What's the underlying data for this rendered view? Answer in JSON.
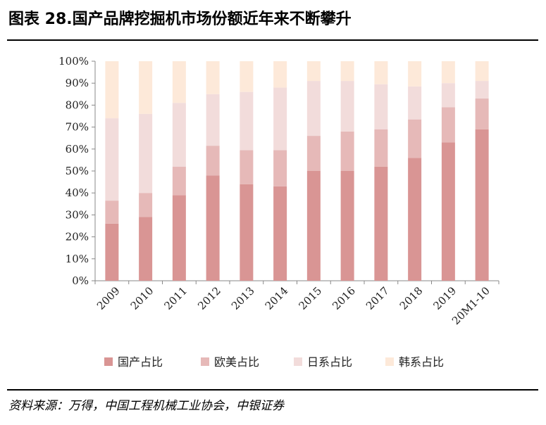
{
  "title": "图表 28.国产品牌挖掘机市场份额近年来不断攀升",
  "source": "资料来源：万得，中国工程机械工业协会，中银证券",
  "chart_data": {
    "type": "bar",
    "stacked": true,
    "categories": [
      "2009",
      "2010",
      "2011",
      "2012",
      "2013",
      "2014",
      "2015",
      "2016",
      "2017",
      "2018",
      "2019",
      "20M1-10"
    ],
    "series": [
      {
        "name": "国产占比",
        "color": "#d99594",
        "values": [
          26,
          29,
          39,
          48,
          44,
          43,
          50,
          50,
          52,
          56,
          63,
          69
        ]
      },
      {
        "name": "欧美占比",
        "color": "#e6b9b8",
        "values": [
          10.5,
          11,
          13,
          13.5,
          15.5,
          16.5,
          16,
          18,
          17,
          17.5,
          16,
          14
        ]
      },
      {
        "name": "日系占比",
        "color": "#f2dcdb",
        "values": [
          37.5,
          36,
          29,
          23.5,
          26.5,
          28.5,
          25,
          23,
          20.5,
          15,
          11,
          8
        ]
      },
      {
        "name": "韩系占比",
        "color": "#fde9d9",
        "values": [
          26,
          24,
          19,
          15,
          14,
          12,
          9,
          9,
          10.5,
          11.5,
          10,
          9
        ]
      }
    ],
    "yticks": [
      "0%",
      "10%",
      "20%",
      "30%",
      "40%",
      "50%",
      "60%",
      "70%",
      "80%",
      "90%",
      "100%"
    ],
    "ylim": [
      0,
      100
    ],
    "legend_position": "bottom",
    "grid": false
  }
}
